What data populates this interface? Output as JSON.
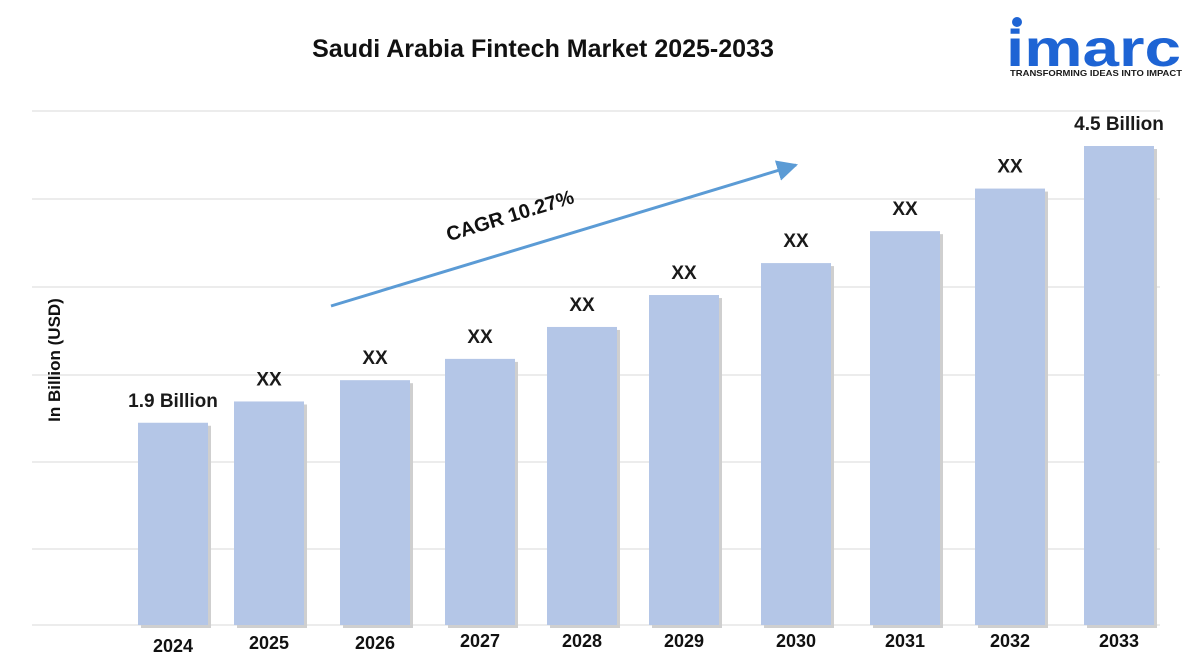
{
  "logo": {
    "name": "imarc",
    "tagline": "TRANSFORMING IDEAS INTO IMPACT"
  },
  "annotation": {
    "cagr_label": "CAGR 10.27%"
  },
  "colors": {
    "bar": "#b4c6e7",
    "bar_shadow": "#cfcfcf",
    "arrow": "#5b9bd5",
    "logo": "#1e64d4",
    "grid": "#d9d9d9"
  },
  "chart_data": {
    "type": "bar",
    "title": "Saudi Arabia Fintech Market 2025-2033",
    "ylabel": "In Billion (USD)",
    "xlabel": "",
    "categories": [
      "2024",
      "2025",
      "2026",
      "2027",
      "2028",
      "2029",
      "2030",
      "2031",
      "2032",
      "2033"
    ],
    "values": [
      1.9,
      2.1,
      2.3,
      2.5,
      2.8,
      3.1,
      3.4,
      3.7,
      4.1,
      4.5
    ],
    "data_labels": [
      "1.9 Billion",
      "XX",
      "XX",
      "XX",
      "XX",
      "XX",
      "XX",
      "XX",
      "XX",
      "4.5 Billion"
    ],
    "ylim": [
      0,
      4.5
    ],
    "grid": true,
    "legend": "none"
  }
}
